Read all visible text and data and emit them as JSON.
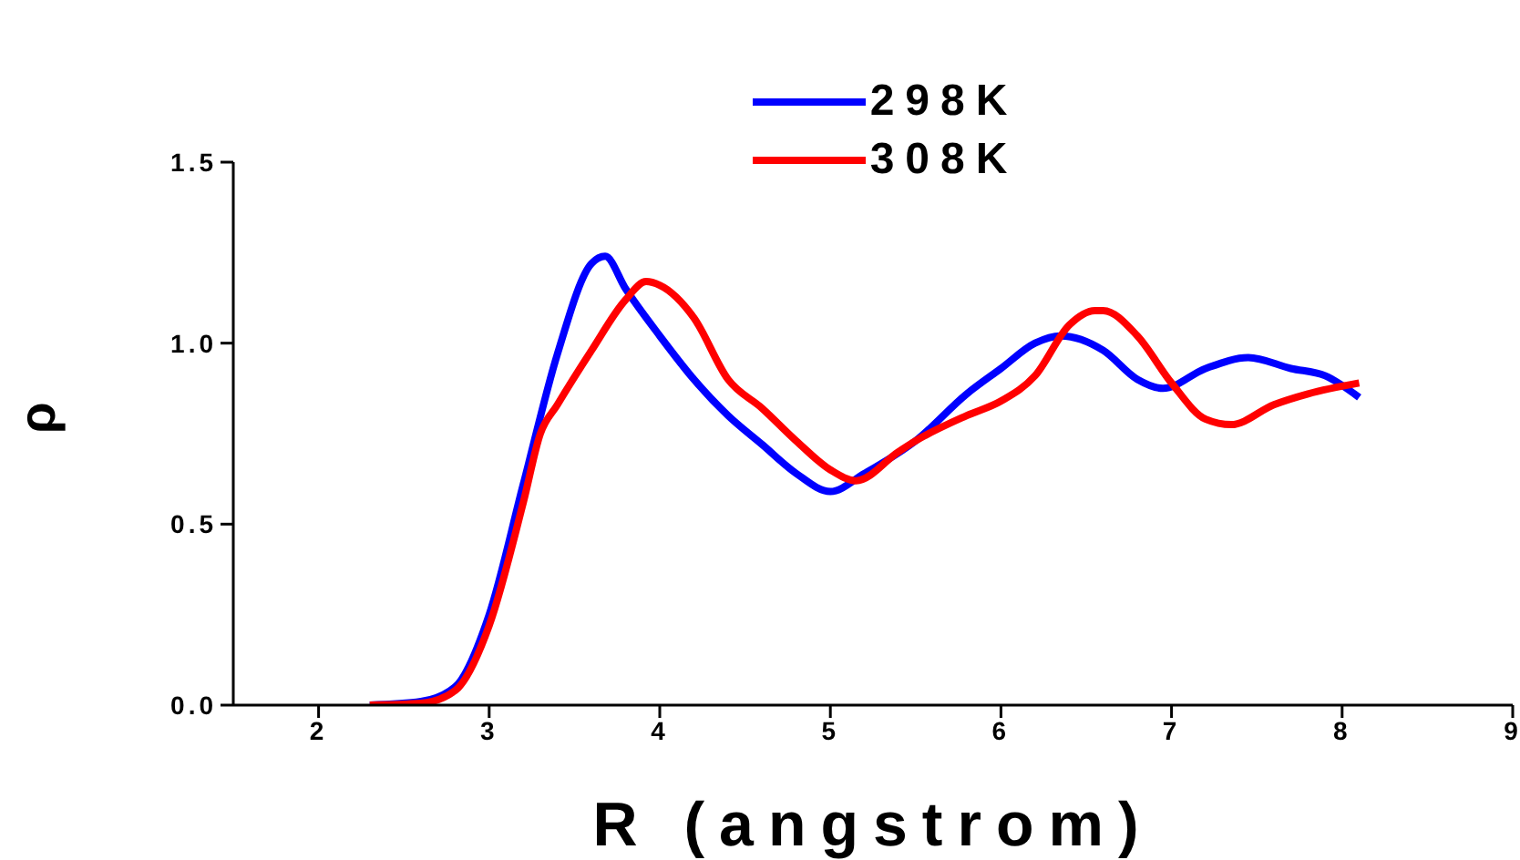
{
  "chart_data": {
    "type": "line",
    "xlabel": "R (angstrom)",
    "ylabel": "ρ",
    "xlim": [
      1.5,
      9
    ],
    "xticks": [
      2,
      3,
      4,
      5,
      6,
      7,
      8,
      9
    ],
    "ylim": [
      0,
      1.5
    ],
    "yticks": [
      {
        "value": 0,
        "label": "0.0"
      },
      {
        "value": 0.5,
        "label": "0.5"
      },
      {
        "value": 1,
        "label": "1.0"
      },
      {
        "value": 1.5,
        "label": "1.5"
      }
    ],
    "grid": false,
    "legend": "top",
    "marker": "none",
    "line_style": "solid",
    "series": [
      {
        "name": "298K",
        "color": "#0000ff",
        "x": [
          2.3,
          2.6,
          2.8,
          3.0,
          3.2,
          3.4,
          3.6,
          3.68,
          3.8,
          4.0,
          4.2,
          4.4,
          4.6,
          4.8,
          5.0,
          5.2,
          5.5,
          5.8,
          6.0,
          6.2,
          6.35,
          6.6,
          6.8,
          6.95,
          7.2,
          7.45,
          7.7,
          7.9,
          8.1
        ],
        "values": [
          0,
          0.01,
          0.05,
          0.25,
          0.61,
          0.97,
          1.22,
          1.24,
          1.15,
          1.02,
          0.9,
          0.8,
          0.72,
          0.64,
          0.59,
          0.64,
          0.73,
          0.86,
          0.93,
          1.0,
          1.02,
          0.98,
          0.9,
          0.875,
          0.93,
          0.96,
          0.93,
          0.91,
          0.85
        ]
      },
      {
        "name": "308K",
        "color": "#ff0000",
        "x": [
          2.3,
          2.6,
          2.8,
          3.0,
          3.2,
          3.3,
          3.4,
          3.6,
          3.8,
          3.92,
          4.0,
          4.2,
          4.4,
          4.6,
          4.8,
          5.0,
          5.15,
          5.4,
          5.5,
          5.8,
          6.0,
          6.2,
          6.4,
          6.55,
          6.6,
          6.8,
          7.0,
          7.2,
          7.35,
          7.6,
          7.8,
          8.1
        ],
        "values": [
          0,
          0.005,
          0.04,
          0.22,
          0.56,
          0.75,
          0.83,
          0.98,
          1.12,
          1.17,
          1.16,
          1.07,
          0.9,
          0.82,
          0.73,
          0.65,
          0.62,
          0.7,
          0.73,
          0.8,
          0.84,
          0.91,
          1.05,
          1.09,
          1.09,
          1.02,
          0.89,
          0.79,
          0.775,
          0.83,
          0.86,
          0.89
        ]
      }
    ]
  }
}
